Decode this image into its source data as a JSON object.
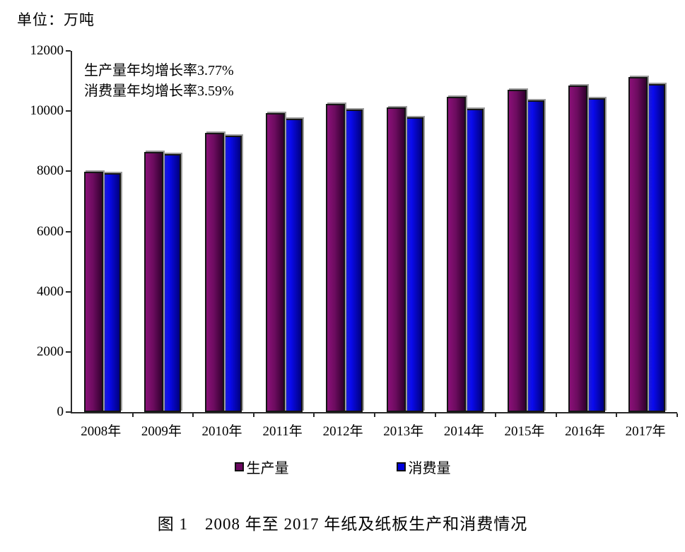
{
  "unit_label": "单位：万吨",
  "annotation": {
    "line1": "生产量年均增长率3.77%",
    "line2": "消费量年均增长率3.59%"
  },
  "legend": {
    "items": [
      {
        "label": "生产量",
        "color": "#6b0761"
      },
      {
        "label": "消费量",
        "color": "#0000dd"
      }
    ]
  },
  "caption": "图 1　2008 年至 2017 年纸及纸板生产和消费情况",
  "colors": {
    "production_gradient_start": "#8a1078",
    "production_gradient_end": "#330030",
    "consumption_gradient_start": "#2222cc",
    "consumption_gradient_end": "#000080",
    "bar_border": "#151515",
    "bar_shadow": "#9c9c9c",
    "axis": "#2a2a2a"
  },
  "chart_data": {
    "type": "bar",
    "title": "图 1　2008 年至 2017 年纸及纸板生产和消费情况",
    "unit": "万吨",
    "categories": [
      "2008年",
      "2009年",
      "2010年",
      "2011年",
      "2012年",
      "2013年",
      "2014年",
      "2015年",
      "2016年",
      "2017年"
    ],
    "series": [
      {
        "name": "生产量",
        "values": [
          7980,
          8640,
          9270,
          9930,
          10250,
          10110,
          10470,
          10710,
          10855,
          11130
        ]
      },
      {
        "name": "消费量",
        "values": [
          7935,
          8569,
          9173,
          9752,
          10048,
          9782,
          10071,
          10352,
          10419,
          10897
        ]
      }
    ],
    "ylim": [
      0,
      12000
    ],
    "yticks": [
      0,
      2000,
      4000,
      6000,
      8000,
      10000,
      12000
    ],
    "grid": false,
    "legend_position": "bottom",
    "annotations": [
      "生产量年均增长率3.77%",
      "消费量年均增长率3.59%"
    ]
  }
}
